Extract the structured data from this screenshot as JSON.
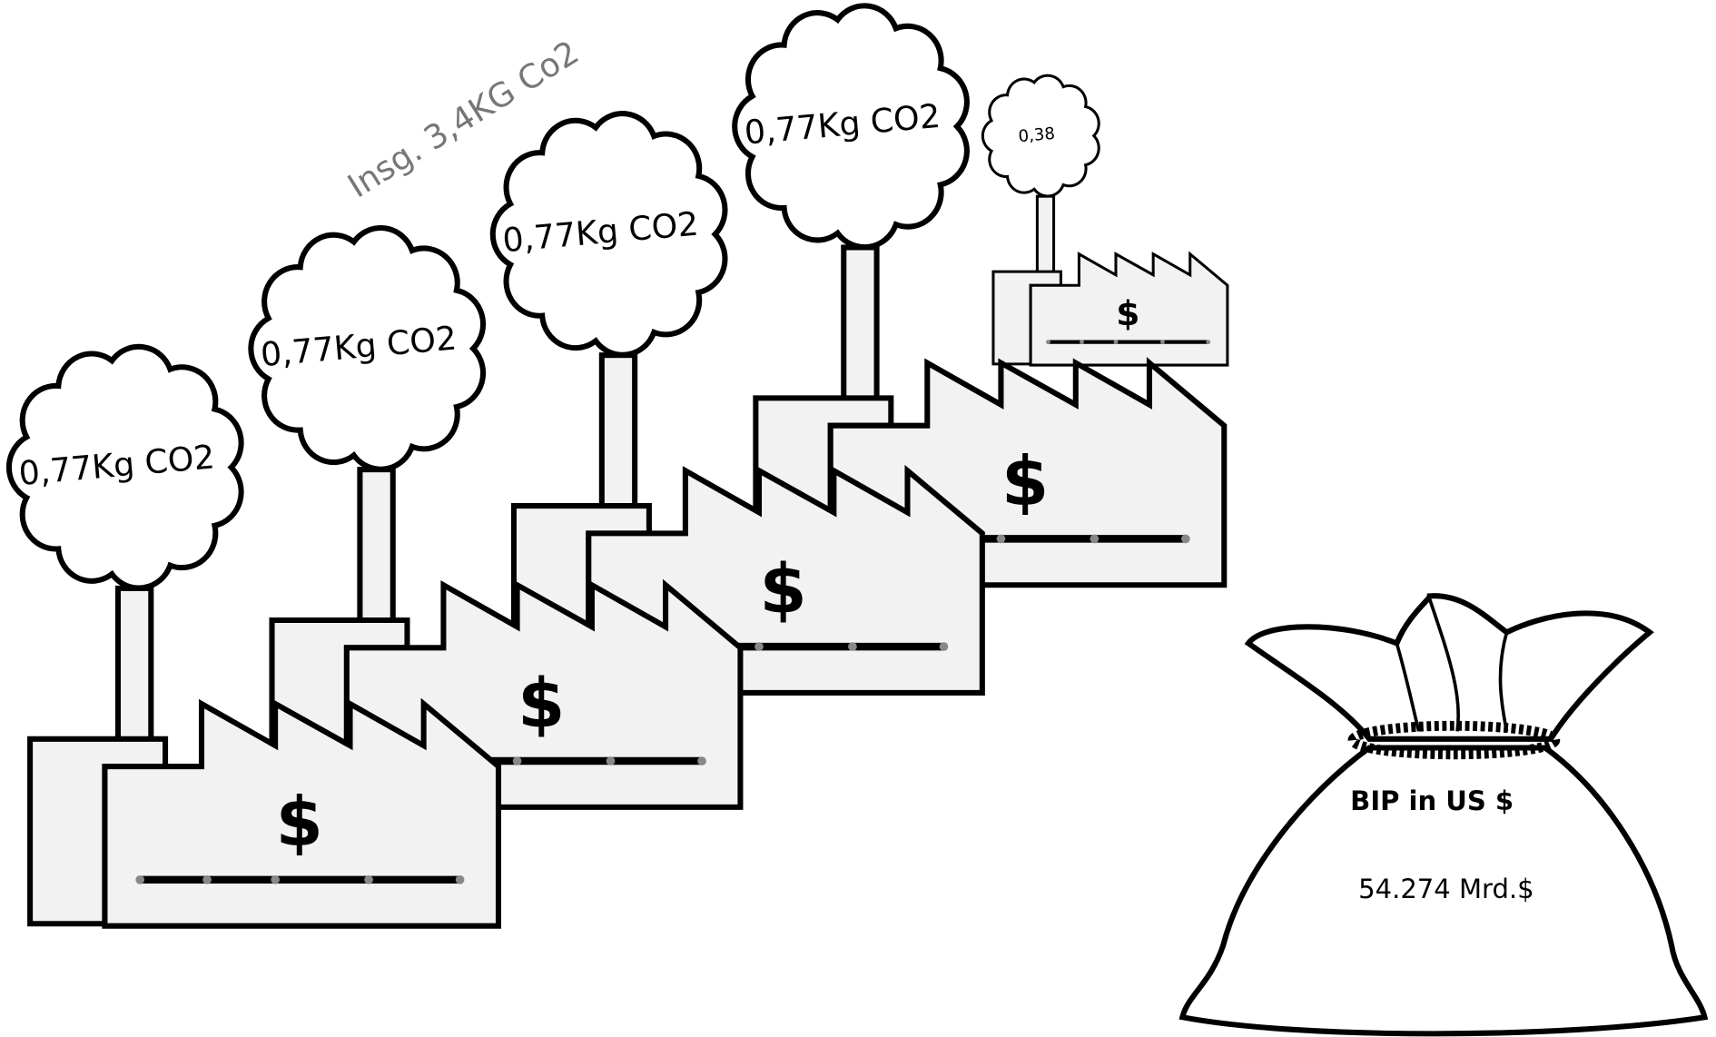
{
  "total_label": "Insg. 3,4KG Co2",
  "factories": [
    {
      "emission": "0,77Kg CO2",
      "symbol": "$"
    },
    {
      "emission": "0,77Kg CO2",
      "symbol": "$"
    },
    {
      "emission": "0,77Kg CO2",
      "symbol": "$"
    },
    {
      "emission": "0,77Kg CO2",
      "symbol": "$"
    },
    {
      "emission": "0,38",
      "symbol": "$"
    }
  ],
  "bag": {
    "title": "BIP in US $",
    "value": "54.274 Mrd.$"
  }
}
